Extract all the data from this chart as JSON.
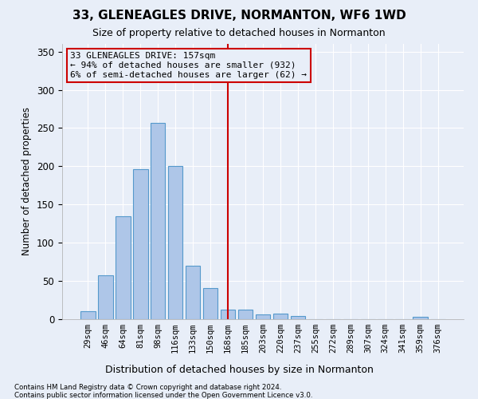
{
  "title": "33, GLENEAGLES DRIVE, NORMANTON, WF6 1WD",
  "subtitle": "Size of property relative to detached houses in Normanton",
  "xlabel_bottom": "Distribution of detached houses by size in Normanton",
  "ylabel": "Number of detached properties",
  "footnote1": "Contains HM Land Registry data © Crown copyright and database right 2024.",
  "footnote2": "Contains public sector information licensed under the Open Government Licence v3.0.",
  "bar_labels": [
    "29sqm",
    "46sqm",
    "64sqm",
    "81sqm",
    "98sqm",
    "116sqm",
    "133sqm",
    "150sqm",
    "168sqm",
    "185sqm",
    "203sqm",
    "220sqm",
    "237sqm",
    "255sqm",
    "272sqm",
    "289sqm",
    "307sqm",
    "324sqm",
    "341sqm",
    "359sqm",
    "376sqm"
  ],
  "bar_values": [
    10,
    57,
    135,
    196,
    257,
    200,
    70,
    41,
    13,
    13,
    6,
    7,
    4,
    0,
    0,
    0,
    0,
    0,
    0,
    3,
    0
  ],
  "bar_color": "#aec6e8",
  "bar_edgecolor": "#5599cc",
  "ylim": [
    0,
    360
  ],
  "yticks": [
    0,
    50,
    100,
    150,
    200,
    250,
    300,
    350
  ],
  "vline_x": 8.0,
  "vline_color": "#cc0000",
  "annotation_title": "33 GLENEAGLES DRIVE: 157sqm",
  "annotation_line1": "← 94% of detached houses are smaller (932)",
  "annotation_line2": "6% of semi-detached houses are larger (62) →",
  "annotation_box_color": "#cc0000",
  "background_color": "#e8eef8",
  "grid_color": "#ffffff"
}
